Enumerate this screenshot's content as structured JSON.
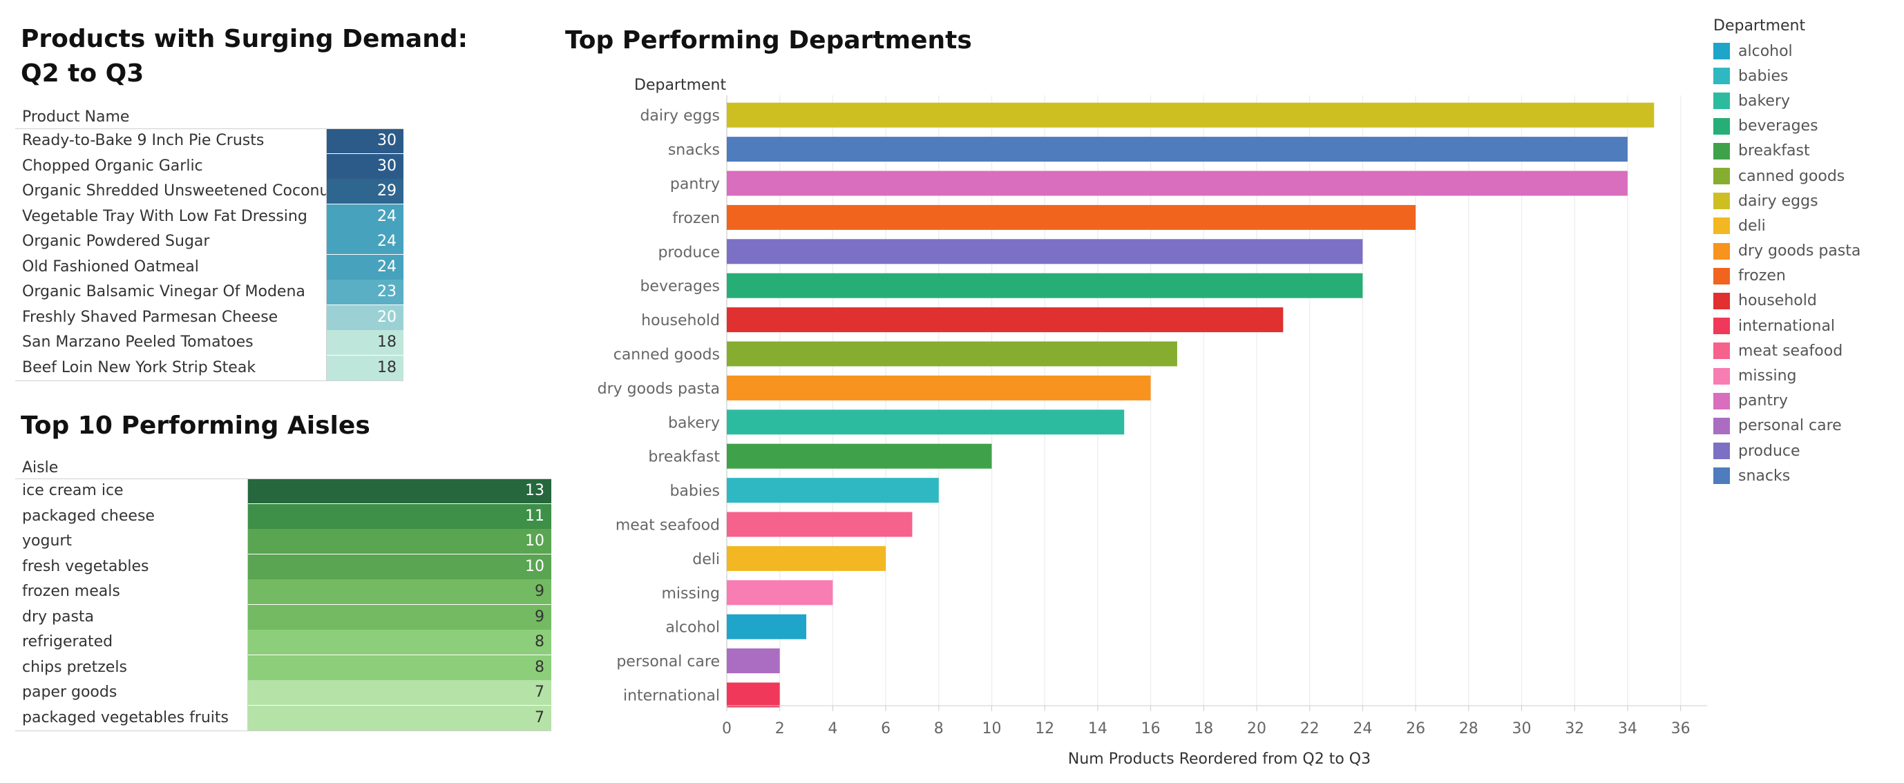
{
  "products": {
    "title_line1": "Products with Surging Demand:",
    "title_line2": "Q2 to Q3",
    "column_header": "Product Name",
    "rows": [
      {
        "name": "Ready-to-Bake 9 Inch Pie Crusts",
        "value": 30,
        "color": "#2c5b8a",
        "text_color": "#ffffff"
      },
      {
        "name": "Chopped Organic Garlic",
        "value": 30,
        "color": "#2c5b8a",
        "text_color": "#ffffff"
      },
      {
        "name": "Organic Shredded Unsweetened Coconut",
        "value": 29,
        "color": "#2f6690",
        "text_color": "#ffffff"
      },
      {
        "name": "Vegetable Tray With Low Fat Dressing",
        "value": 24,
        "color": "#47a2bd",
        "text_color": "#ffffff"
      },
      {
        "name": "Organic Powdered Sugar",
        "value": 24,
        "color": "#47a2bd",
        "text_color": "#ffffff"
      },
      {
        "name": "Old Fashioned Oatmeal",
        "value": 24,
        "color": "#47a2bd",
        "text_color": "#ffffff"
      },
      {
        "name": "Organic Balsamic Vinegar Of Modena",
        "value": 23,
        "color": "#5aafc4",
        "text_color": "#ffffff"
      },
      {
        "name": "Freshly Shaved Parmesan Cheese",
        "value": 20,
        "color": "#9bd1d4",
        "text_color": "#ffffff"
      },
      {
        "name": "San Marzano Peeled Tomatoes",
        "value": 18,
        "color": "#bfe6da",
        "text_color": "#333333"
      },
      {
        "name": "Beef Loin New York Strip Steak",
        "value": 18,
        "color": "#bfe6da",
        "text_color": "#333333"
      }
    ]
  },
  "aisles": {
    "title": "Top 10 Performing Aisles",
    "column_header": "Aisle",
    "rows": [
      {
        "name": "ice cream ice",
        "value": 13,
        "color": "#26673e",
        "text_color": "#ffffff"
      },
      {
        "name": "packaged cheese",
        "value": 11,
        "color": "#3e8f48",
        "text_color": "#ffffff"
      },
      {
        "name": "yogurt",
        "value": 10,
        "color": "#5aa552",
        "text_color": "#ffffff"
      },
      {
        "name": "fresh vegetables",
        "value": 10,
        "color": "#5aa552",
        "text_color": "#ffffff"
      },
      {
        "name": "frozen meals",
        "value": 9,
        "color": "#73ba63",
        "text_color": "#333333"
      },
      {
        "name": "dry pasta",
        "value": 9,
        "color": "#73ba63",
        "text_color": "#333333"
      },
      {
        "name": "refrigerated",
        "value": 8,
        "color": "#8dce7b",
        "text_color": "#333333"
      },
      {
        "name": "chips pretzels",
        "value": 8,
        "color": "#8dce7b",
        "text_color": "#333333"
      },
      {
        "name": "paper goods",
        "value": 7,
        "color": "#b4e2a7",
        "text_color": "#333333"
      },
      {
        "name": "packaged vegetables fruits",
        "value": 7,
        "color": "#b4e2a7",
        "text_color": "#333333"
      }
    ]
  },
  "departments_chart": {
    "title": "Top Performing Departments",
    "row_header": "Department",
    "legend_title": "Department",
    "legend": [
      {
        "name": "alcohol",
        "color": "#1ea5c9"
      },
      {
        "name": "babies",
        "color": "#2fb8c2"
      },
      {
        "name": "bakery",
        "color": "#2dbba0"
      },
      {
        "name": "beverages",
        "color": "#27ae77"
      },
      {
        "name": "breakfast",
        "color": "#3fa24a"
      },
      {
        "name": "canned goods",
        "color": "#86ad30"
      },
      {
        "name": "dairy eggs",
        "color": "#cdbf22"
      },
      {
        "name": "deli",
        "color": "#f2b722"
      },
      {
        "name": "dry goods pasta",
        "color": "#f7931e"
      },
      {
        "name": "frozen",
        "color": "#f1641e"
      },
      {
        "name": "household",
        "color": "#e03030"
      },
      {
        "name": "international",
        "color": "#f0395a"
      },
      {
        "name": "meat seafood",
        "color": "#f5628c"
      },
      {
        "name": "missing",
        "color": "#f77db3"
      },
      {
        "name": "pantry",
        "color": "#d96dbe"
      },
      {
        "name": "personal care",
        "color": "#ab6dc2"
      },
      {
        "name": "produce",
        "color": "#7b70c4"
      },
      {
        "name": "snacks",
        "color": "#4e7cbd"
      }
    ]
  },
  "chart_data": {
    "type": "bar",
    "orientation": "horizontal",
    "title": "Top Performing Departments",
    "xlabel": "Num Products Reordered from Q2 to Q3",
    "ylabel": "Department",
    "xlim": [
      0,
      37
    ],
    "xticks": [
      0,
      2,
      4,
      6,
      8,
      10,
      12,
      14,
      16,
      18,
      20,
      22,
      24,
      26,
      28,
      30,
      32,
      34,
      36
    ],
    "grid": true,
    "categories": [
      "dairy eggs",
      "snacks",
      "pantry",
      "frozen",
      "produce",
      "beverages",
      "household",
      "canned goods",
      "dry goods pasta",
      "bakery",
      "breakfast",
      "babies",
      "meat seafood",
      "deli",
      "missing",
      "alcohol",
      "personal care",
      "international"
    ],
    "values": [
      35,
      34,
      34,
      26,
      24,
      24,
      21,
      17,
      16,
      15,
      10,
      8,
      7,
      6,
      4,
      3,
      2,
      2
    ]
  }
}
